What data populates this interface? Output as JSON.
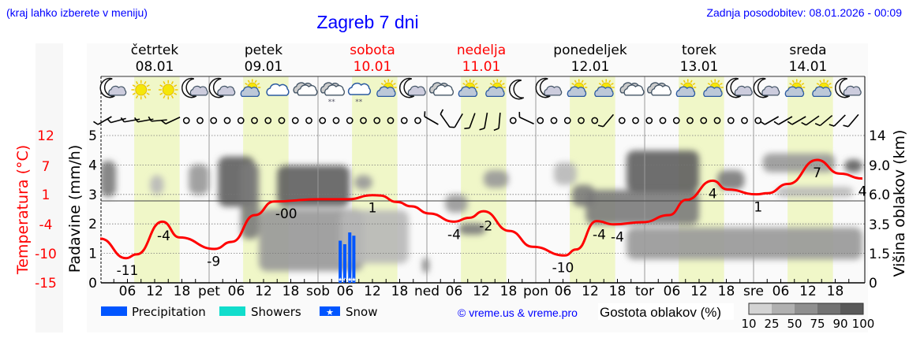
{
  "header": {
    "menu_hint": "(kraj lahko izberete v meniju)",
    "title": "Zagreb 7 dni",
    "updated": "Zadnja posodobitev: 08.01.2026 - 00:09"
  },
  "days": [
    {
      "name": "četrtek",
      "date": "08.01",
      "abbr": "",
      "weekend": false
    },
    {
      "name": "petek",
      "date": "09.01",
      "abbr": "pet",
      "weekend": false
    },
    {
      "name": "sobota",
      "date": "10.01",
      "abbr": "sob",
      "weekend": true
    },
    {
      "name": "nedelja",
      "date": "11.01",
      "abbr": "ned",
      "weekend": true
    },
    {
      "name": "ponedeljek",
      "date": "12.01",
      "abbr": "pon",
      "weekend": false
    },
    {
      "name": "torek",
      "date": "13.01",
      "abbr": "tor",
      "weekend": false
    },
    {
      "name": "sreda",
      "date": "14.01",
      "abbr": "sre",
      "weekend": false
    }
  ],
  "hour_ticks": [
    "06",
    "12",
    "18"
  ],
  "colors": {
    "text_blue": "#0000ff",
    "weekend": "#ff0000",
    "temperature": "#ff0000",
    "daylight": "#f0f7c8",
    "plot_bg": "#fafafa",
    "precipitation": "#0055ff",
    "showers": "#11ddcc",
    "snow": "#0055ff"
  },
  "chart_data": {
    "type": "line",
    "title": "Zagreb 7 dni",
    "x_unit": "hours from 08.01 00:00",
    "xlim": [
      0,
      168
    ],
    "daylight_hours": [
      7.5,
      17.5
    ],
    "left_axis": {
      "label": "Padavine (mm/h)",
      "ticks": [
        "0",
        "1",
        "2",
        "3",
        "4",
        "5"
      ],
      "ylim": [
        0,
        5.5
      ]
    },
    "temp_axis": {
      "label": "Temperatura (°C)",
      "ticks": [
        "-15",
        "-10",
        "-4",
        "1",
        "7",
        "12"
      ],
      "ylim": [
        -15,
        12
      ]
    },
    "right_axis": {
      "label": "Višina oblakov (km)",
      "ticks": [
        "0",
        "1.5",
        "3.5",
        "6.0",
        "9.0",
        "14"
      ]
    },
    "temperature": {
      "x": [
        0,
        5.7,
        8,
        13.7,
        17.5,
        25.2,
        29,
        34.1,
        38.3,
        48.2,
        54.6,
        60,
        61.6,
        65.4,
        68.6,
        72.5,
        78,
        81.3,
        84.5,
        90.2,
        95.3,
        102.4,
        104.9,
        109.4,
        113.2,
        119.6,
        125.4,
        129.2,
        135,
        138.2,
        144.6,
        147.1,
        151.6,
        158,
        163,
        168
      ],
      "y": [
        -6.9,
        -10.5,
        -9.8,
        -3.8,
        -6.7,
        -8.8,
        -7.5,
        -2.6,
        -0.1,
        0.3,
        0.3,
        1.05,
        1.0,
        -0.2,
        -1.0,
        -2.3,
        -3.8,
        -3.1,
        -1.9,
        -5.5,
        -8.4,
        -10.0,
        -8.9,
        -3.7,
        -4.3,
        -3.9,
        -2.6,
        0.2,
        3.7,
        2.1,
        1.2,
        1.4,
        3.1,
        7.5,
        5.0,
        4.1
      ]
    },
    "temperature_labels": [
      {
        "h": 6,
        "text": "-11"
      },
      {
        "h": 14,
        "text": "-4"
      },
      {
        "h": 25,
        "text": "-9"
      },
      {
        "h": 41,
        "text": "-00"
      },
      {
        "h": 60,
        "text": "1"
      },
      {
        "h": 78,
        "text": "-4"
      },
      {
        "h": 85,
        "text": "-2"
      },
      {
        "h": 102,
        "text": "-10"
      },
      {
        "h": 110,
        "text": "-4"
      },
      {
        "h": 114,
        "text": "-4"
      },
      {
        "h": 135,
        "text": "4"
      },
      {
        "h": 145,
        "text": "1"
      },
      {
        "h": 158,
        "text": "7"
      },
      {
        "h": 168,
        "text": "4"
      }
    ],
    "precipitation": [
      {
        "h": 52.9,
        "mm": 1.43,
        "type": "snow"
      },
      {
        "h": 53.9,
        "mm": 1.31,
        "type": "snow"
      },
      {
        "h": 55.0,
        "mm": 1.71,
        "type": "snow"
      },
      {
        "h": 55.9,
        "mm": 1.6,
        "type": "snow"
      }
    ],
    "cloud_cover": [
      {
        "h": [
          0,
          3.5
        ],
        "km": [
          5.8,
          9.8
        ],
        "density": 75
      },
      {
        "h": [
          11,
          14
        ],
        "km": [
          6,
          8
        ],
        "density": 25
      },
      {
        "h": [
          19.5,
          24
        ],
        "km": [
          6,
          9.2
        ],
        "density": 50
      },
      {
        "h": [
          26,
          34
        ],
        "km": [
          5,
          10.5
        ],
        "density": 90
      },
      {
        "h": [
          31,
          35
        ],
        "km": [
          2.5,
          9.5
        ],
        "density": 75
      },
      {
        "h": [
          39,
          55
        ],
        "km": [
          5,
          9
        ],
        "density": 90
      },
      {
        "h": [
          35,
          58
        ],
        "km": [
          0.6,
          4.8
        ],
        "density": 50
      },
      {
        "h": [
          56,
          60
        ],
        "km": [
          6.5,
          8
        ],
        "density": 50
      },
      {
        "h": [
          53,
          68
        ],
        "km": [
          1,
          4.7
        ],
        "density": 25
      },
      {
        "h": [
          71,
          72.5
        ],
        "km": [
          0.5,
          1.3
        ],
        "density": 75
      },
      {
        "h": [
          76,
          81
        ],
        "km": [
          4.5,
          6
        ],
        "density": 50
      },
      {
        "h": [
          79,
          85
        ],
        "km": [
          2.8,
          3.6
        ],
        "density": 75
      },
      {
        "h": [
          84.5,
          90
        ],
        "km": [
          6.7,
          8.5
        ],
        "density": 50
      },
      {
        "h": [
          100,
          105
        ],
        "km": [
          7,
          9.5
        ],
        "density": 25
      },
      {
        "h": [
          104,
          109
        ],
        "km": [
          5,
          7
        ],
        "density": 75
      },
      {
        "h": [
          107,
          132
        ],
        "km": [
          3.5,
          6.5
        ],
        "density": 75
      },
      {
        "h": [
          116,
          132
        ],
        "km": [
          6.3,
          11.5
        ],
        "density": 90
      },
      {
        "h": [
          136,
          142
        ],
        "km": [
          6.5,
          8.5
        ],
        "density": 75
      },
      {
        "h": [
          116,
          168
        ],
        "km": [
          1.2,
          3.3
        ],
        "density": 50
      },
      {
        "h": [
          146,
          162
        ],
        "km": [
          8.3,
          11
        ],
        "density": 50
      },
      {
        "h": [
          164,
          168
        ],
        "km": [
          8.3,
          10
        ],
        "density": 90
      },
      {
        "h": [
          149,
          166
        ],
        "km": [
          5.8,
          6.8
        ],
        "density": 25
      }
    ],
    "weather_icons": [
      "moon-cloud",
      "sun",
      "sun",
      "moon-cloud",
      "moon-cloud",
      "sun-cloud",
      "cloud",
      "overcast",
      "overcast-snow",
      "cloud-snow",
      "sun-cloud",
      "moon-cloud",
      "overcast",
      "sun-cloud",
      "sun-cloud",
      "moon",
      "moon-cloud",
      "sun-cloud",
      "sun-cloud",
      "overcast",
      "overcast",
      "sun-cloud",
      "sun-cloud",
      "moon-cloud",
      "moon-cloud",
      "sun-cloud",
      "sun-cloud",
      "moon-cloud"
    ],
    "wind": [
      "barb",
      "barb",
      "barb",
      "barb",
      "barb",
      "barb",
      "calm",
      "calm",
      "calm",
      "calm",
      "calm",
      "calm",
      "calm",
      "calm",
      "calm",
      "calm",
      "calm",
      "calm",
      "calm",
      "calm",
      "calm",
      "calm",
      "calm",
      "calm",
      "barb",
      "barb",
      "barb",
      "barb",
      "barb",
      "barb",
      "calm",
      "barb",
      "calm",
      "calm",
      "calm",
      "calm",
      "calm",
      "barb",
      "calm",
      "calm",
      "calm",
      "calm",
      "calm",
      "calm",
      "calm",
      "calm",
      "calm",
      "calm",
      "calm",
      "barb",
      "barb",
      "barb",
      "barb",
      "barb",
      "barb",
      "barb"
    ],
    "wind_angles": [
      -30,
      -15,
      -10,
      -10,
      -5,
      -25,
      0,
      0,
      0,
      0,
      0,
      0,
      0,
      0,
      0,
      0,
      0,
      0,
      0,
      0,
      0,
      0,
      0,
      0,
      30,
      55,
      -60,
      -70,
      -80,
      -85,
      0,
      25,
      0,
      0,
      0,
      0,
      0,
      -50,
      0,
      0,
      0,
      0,
      0,
      0,
      0,
      0,
      0,
      0,
      0,
      -30,
      -30,
      -30,
      -35,
      -40,
      -45,
      -50
    ]
  },
  "legend": {
    "precipitation": "Precipitation",
    "showers": "Showers",
    "snow": "Snow",
    "copyright": "© vreme.us & vreme.pro",
    "cloud_density_title": "Gostota oblakov (%)",
    "cloud_density_levels": [
      "10",
      "25",
      "50",
      "75",
      "90",
      "100"
    ],
    "cloud_density_colors": [
      "#d3d3d3",
      "#b0b0b0",
      "#8f8f8f",
      "#727272",
      "#595959"
    ]
  }
}
